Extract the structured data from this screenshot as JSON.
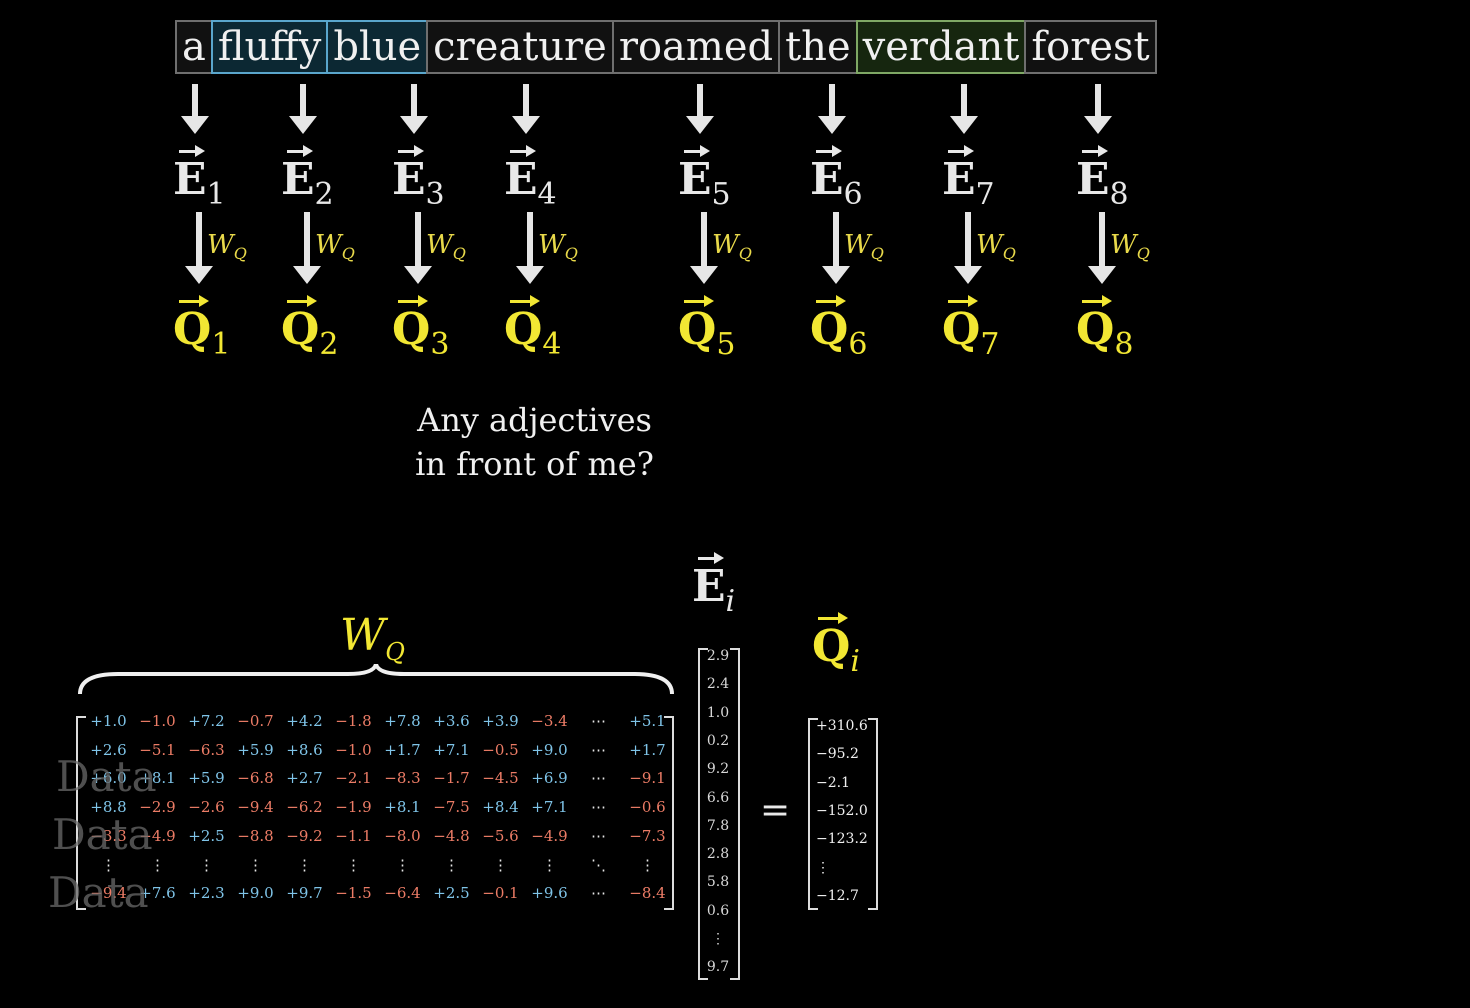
{
  "tokens": [
    {
      "text": "a",
      "style": "plain"
    },
    {
      "text": "fluffy",
      "style": "adj-blue"
    },
    {
      "text": "blue",
      "style": "adj-blue"
    },
    {
      "text": "creature",
      "style": "plain"
    },
    {
      "text": "roamed",
      "style": "plain"
    },
    {
      "text": "the",
      "style": "plain"
    },
    {
      "text": "verdant",
      "style": "adj-green"
    },
    {
      "text": "forest",
      "style": "plain"
    }
  ],
  "embedding_symbol": "E",
  "query_symbol": "Q",
  "indices": [
    "1",
    "2",
    "3",
    "4",
    "5",
    "6",
    "7",
    "8"
  ],
  "weight_label": "W",
  "weight_sub": "Q",
  "question": [
    "Any adjectives",
    "in front of me?"
  ],
  "matrix_rows": [
    [
      "+1.0",
      "−1.0",
      "+7.2",
      "−0.7",
      "+4.2",
      "−1.8",
      "+7.8",
      "+3.6",
      "+3.9",
      "−3.4",
      "⋯",
      "+5.1"
    ],
    [
      "+2.6",
      "−5.1",
      "−6.3",
      "+5.9",
      "+8.6",
      "−1.0",
      "+1.7",
      "+7.1",
      "−0.5",
      "+9.0",
      "⋯",
      "+1.7"
    ],
    [
      "+6.0",
      "+8.1",
      "+5.9",
      "−6.8",
      "+2.7",
      "−2.1",
      "−8.3",
      "−1.7",
      "−4.5",
      "+6.9",
      "⋯",
      "−9.1"
    ],
    [
      "+8.8",
      "−2.9",
      "−2.6",
      "−9.4",
      "−6.2",
      "−1.9",
      "+8.1",
      "−7.5",
      "+8.4",
      "+7.1",
      "⋯",
      "−0.6"
    ],
    [
      "−3.3",
      "−4.9",
      "+2.5",
      "−8.8",
      "−9.2",
      "−1.1",
      "−8.0",
      "−4.8",
      "−5.6",
      "−4.9",
      "⋯",
      "−7.3"
    ],
    [
      "⋮",
      "⋮",
      "⋮",
      "⋮",
      "⋮",
      "⋮",
      "⋮",
      "⋮",
      "⋮",
      "⋮",
      "⋱",
      "⋮"
    ],
    [
      "−9.4",
      "+7.6",
      "+2.3",
      "+9.0",
      "+9.7",
      "−1.5",
      "−6.4",
      "+2.5",
      "−0.1",
      "+9.6",
      "⋯",
      "−8.4"
    ]
  ],
  "watermark": [
    "Data",
    "Data",
    "Data"
  ],
  "embedding_index": "i",
  "embedding_values": [
    "2.9",
    "2.4",
    "1.0",
    "0.2",
    "9.2",
    "6.6",
    "7.8",
    "2.8",
    "5.8",
    "0.6",
    "⋮",
    "9.7"
  ],
  "equals": "=",
  "query_values": [
    "+310.6",
    "−95.2",
    "−2.1",
    "−152.0",
    "−123.2",
    "⋮",
    "−12.7"
  ],
  "colors": {
    "query": "#f2e733",
    "positive": "#7fc4e8",
    "negative": "#ec7c66",
    "adj_blue": "#5aa6cc",
    "adj_green": "#7fa865"
  }
}
